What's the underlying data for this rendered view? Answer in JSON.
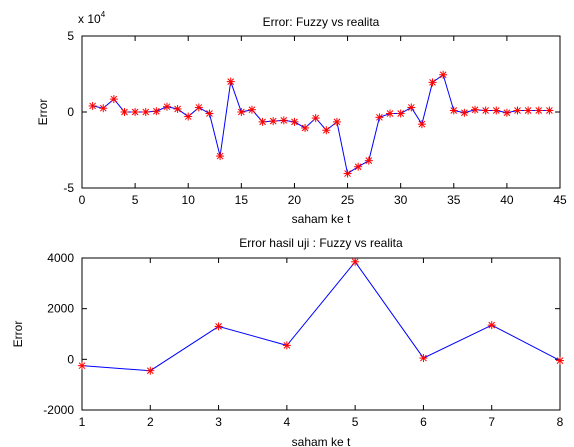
{
  "chart_data": [
    {
      "type": "line",
      "title": "Error: Fuzzy vs realita",
      "xlabel": "saham ke t",
      "ylabel": "Error",
      "exponent_label": "x 10",
      "exponent_power": "4",
      "xlim": [
        0,
        45
      ],
      "ylim": [
        -5,
        5
      ],
      "xticks": [
        0,
        5,
        10,
        15,
        20,
        25,
        30,
        35,
        40,
        45
      ],
      "yticks": [
        -5,
        0,
        5
      ],
      "grid": false,
      "series": [
        {
          "color": "#0000ff",
          "marker_color": "#ff0000",
          "marker": "asterisk",
          "x": [
            1,
            2,
            3,
            4,
            5,
            6,
            7,
            8,
            9,
            10,
            11,
            12,
            13,
            14,
            15,
            16,
            17,
            18,
            19,
            20,
            21,
            22,
            23,
            24,
            25,
            26,
            27,
            28,
            29,
            30,
            31,
            32,
            33,
            34,
            35,
            36,
            37,
            38,
            39,
            40,
            41,
            42,
            43,
            44
          ],
          "values": [
            0.4,
            0.25,
            0.85,
            0.0,
            0.0,
            0.0,
            0.05,
            0.35,
            0.2,
            -0.3,
            0.3,
            -0.1,
            -2.9,
            2.0,
            0.0,
            0.15,
            -0.65,
            -0.6,
            -0.55,
            -0.65,
            -1.05,
            -0.4,
            -1.2,
            -0.65,
            -4.05,
            -3.6,
            -3.2,
            -0.35,
            -0.1,
            -0.1,
            0.3,
            -0.8,
            1.95,
            2.45,
            0.1,
            -0.05,
            0.15,
            0.1,
            0.1,
            -0.05,
            0.1,
            0.1,
            0.1,
            0.1
          ]
        }
      ]
    },
    {
      "type": "line",
      "title": "Error hasil uji : Fuzzy vs realita",
      "xlabel": "saham ke t",
      "ylabel": "Error",
      "xlim": [
        1,
        8
      ],
      "ylim": [
        -2000,
        4000
      ],
      "xticks": [
        1,
        2,
        3,
        4,
        5,
        6,
        7,
        8
      ],
      "yticks": [
        -2000,
        0,
        2000,
        4000
      ],
      "grid": false,
      "series": [
        {
          "color": "#0000ff",
          "marker_color": "#ff0000",
          "marker": "asterisk",
          "x": [
            1,
            2,
            3,
            4,
            5,
            6,
            7,
            8
          ],
          "values": [
            -250,
            -450,
            1300,
            550,
            3850,
            50,
            1350,
            -50
          ]
        }
      ]
    }
  ]
}
